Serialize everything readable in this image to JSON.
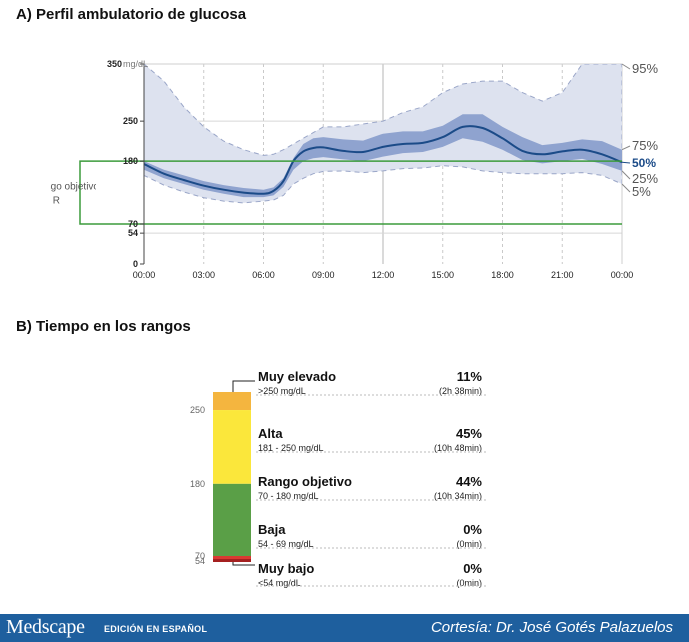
{
  "chart_data": [
    {
      "type": "area",
      "title": "A) Perfil ambulatorio de glucosa",
      "y_ticks": [
        0,
        54,
        70,
        180,
        250,
        350
      ],
      "y_unit": "mg/dL",
      "x_ticks": [
        "00:00",
        "03:00",
        "06:00",
        "09:00",
        "12:00",
        "15:00",
        "18:00",
        "21:00",
        "00:00"
      ],
      "xlim": [
        0,
        24
      ],
      "ylim": [
        0,
        350
      ],
      "target_range": {
        "low": 70,
        "high": 180,
        "label_lines": [
          "Rango objetivo",
          "R"
        ]
      },
      "percentile_labels": [
        "95%",
        "75%",
        "50%",
        "25%",
        "5%"
      ],
      "x": [
        0,
        1,
        2,
        3,
        4,
        5,
        6,
        6.5,
        7,
        7.5,
        8,
        8.5,
        9,
        10,
        11,
        12,
        13,
        14,
        15,
        16,
        17,
        18,
        19,
        20,
        21,
        22,
        23,
        24
      ],
      "series": [
        {
          "key": "p95",
          "values": [
            350,
            320,
            275,
            240,
            215,
            200,
            190,
            192,
            200,
            210,
            220,
            230,
            240,
            240,
            245,
            250,
            265,
            275,
            300,
            315,
            320,
            320,
            300,
            285,
            300,
            350,
            350,
            350
          ]
        },
        {
          "key": "p75",
          "values": [
            180,
            165,
            155,
            145,
            138,
            133,
            130,
            134,
            150,
            185,
            210,
            220,
            222,
            218,
            216,
            228,
            232,
            232,
            242,
            262,
            262,
            240,
            222,
            208,
            212,
            218,
            215,
            200
          ]
        },
        {
          "key": "p50",
          "values": [
            175,
            158,
            147,
            137,
            130,
            125,
            123,
            128,
            145,
            180,
            197,
            203,
            204,
            198,
            196,
            205,
            210,
            212,
            222,
            240,
            238,
            220,
            198,
            192,
            197,
            200,
            192,
            178
          ]
        },
        {
          "key": "p25",
          "values": [
            165,
            150,
            140,
            130,
            123,
            117,
            117,
            120,
            135,
            165,
            180,
            185,
            187,
            183,
            180,
            188,
            194,
            196,
            205,
            220,
            214,
            200,
            182,
            176,
            180,
            184,
            175,
            163
          ]
        },
        {
          "key": "p5",
          "values": [
            155,
            138,
            126,
            116,
            110,
            107,
            110,
            112,
            120,
            140,
            150,
            158,
            162,
            163,
            160,
            163,
            167,
            168,
            172,
            170,
            163,
            160,
            158,
            158,
            158,
            160,
            155,
            140
          ]
        }
      ]
    },
    {
      "type": "bar",
      "title": "B) Tiempo en los rangos",
      "axis_ticks": [
        250,
        180,
        70,
        54
      ],
      "categories": [
        "Muy elevado",
        "Alta",
        "Rango objetivo",
        "Baja",
        "Muy bajo"
      ],
      "ranges": [
        ">250 mg/dL",
        "181 - 250 mg/dL",
        "70 - 180 mg/dL",
        "54 - 69 mg/dL",
        "<54 mg/dL"
      ],
      "values": [
        11,
        45,
        44,
        0,
        0
      ],
      "value_labels": [
        "11%",
        "45%",
        "44%",
        "0%",
        "0%"
      ],
      "durations": [
        "(2h 38min)",
        "(10h 48min)",
        "(10h 34min)",
        "(0min)",
        "(0min)"
      ],
      "colors": [
        "#f4b53f",
        "#fbe73b",
        "#5a9f47",
        "#d93a32",
        "#a52020"
      ]
    }
  ],
  "colors": {
    "outer_band": "#dde2ef",
    "inner_band": "#8fa3cf",
    "median_line": "#1b4b88",
    "target_line": "#3b9b3b",
    "grid": "#cfcfcf"
  },
  "footer": {
    "logo": "Medscape",
    "edition": "EDICIÓN EN ESPAÑOL",
    "credit": "Cortesía: Dr. José Gotés Palazuelos"
  }
}
